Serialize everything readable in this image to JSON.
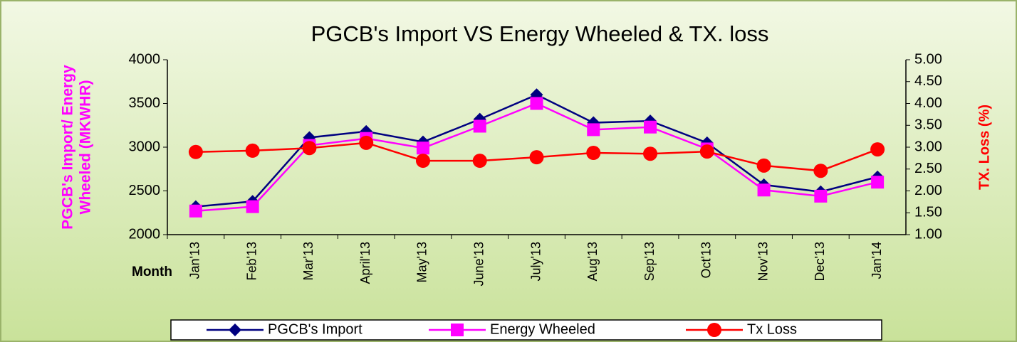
{
  "chart_data": {
    "type": "line",
    "title": "PGCB's Import  VS  Energy  Wheeled & TX. loss",
    "y_label": [
      "PGCB's Import/ Energy",
      "Wheeled (MKWHR)"
    ],
    "y2_label": "TX. Loss (%)",
    "x_label": "Month",
    "categories": [
      "Jan'13",
      "Feb'13",
      "Mar'13",
      "April'13",
      "May'13",
      "June'13",
      "July'13",
      "Aug'13",
      "Sep'13",
      "Oct'13",
      "Nov'13",
      "Dec'13",
      "Jan'14"
    ],
    "ylim": [
      2000,
      4000
    ],
    "yticks": [
      2000,
      2500,
      3000,
      3500,
      4000
    ],
    "y2lim": [
      1,
      5
    ],
    "y2ticks": [
      {
        "value": 1,
        "label": "1.00"
      },
      {
        "value": 1.5,
        "label": "1.50"
      },
      {
        "value": 2,
        "label": "2.00"
      },
      {
        "value": 2.5,
        "label": "2.50"
      },
      {
        "value": 3,
        "label": "3.00"
      },
      {
        "value": 3.5,
        "label": "3.50"
      },
      {
        "value": 4,
        "label": "4.00"
      },
      {
        "value": 4.5,
        "label": "4.50"
      },
      {
        "value": 5,
        "label": "5.00"
      }
    ],
    "series": [
      {
        "name": "PGCB's Import",
        "color": "#000080",
        "marker": "diamond",
        "values": [
          2320,
          2380,
          3110,
          3180,
          3060,
          3320,
          3600,
          3280,
          3300,
          3050,
          2570,
          2490,
          2660
        ]
      },
      {
        "name": "Energy Wheeled",
        "color": "#ff00ff",
        "marker": "square",
        "values": [
          2270,
          2320,
          3020,
          3100,
          2990,
          3240,
          3500,
          3200,
          3230,
          2980,
          2510,
          2440,
          2600
        ]
      },
      {
        "name": "Tx Loss",
        "color": "#ff0000",
        "marker": "circle",
        "axis": "y2",
        "values": [
          2.89,
          2.92,
          2.98,
          3.1,
          2.69,
          2.69,
          2.77,
          2.87,
          2.85,
          2.9,
          2.58,
          2.46,
          2.95
        ]
      }
    ]
  }
}
